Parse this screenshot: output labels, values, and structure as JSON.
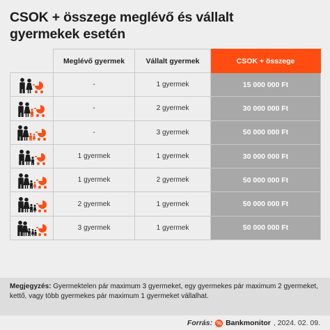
{
  "title": {
    "line1": "CSOK + összege meglévő és vállalt",
    "line2": "gyermekek esetén"
  },
  "table": {
    "headers": [
      "",
      "Meglévő gyermek",
      "Vállalt gyermek",
      "CSOK + összege"
    ],
    "rows": [
      {
        "icon": "couple-with-stroller-icon",
        "existing": "-",
        "committed": "1 gyermek",
        "amount": "15 000 000 Ft"
      },
      {
        "icon": "family-two-kids-icon",
        "existing": "-",
        "committed": "2 gyermek",
        "amount": "30 000 000 Ft"
      },
      {
        "icon": "family-three-kids-icon",
        "existing": "-",
        "committed": "3 gyermek",
        "amount": "50 000 000 Ft"
      },
      {
        "icon": "family-one-child-icon",
        "existing": "1 gyermek",
        "committed": "1 gyermek",
        "amount": "30 000 000 Ft"
      },
      {
        "icon": "family-one-child-two-more-icon",
        "existing": "1 gyermek",
        "committed": "2 gyermek",
        "amount": "50 000 000 Ft"
      },
      {
        "icon": "family-two-children-icon",
        "existing": "2 gyermek",
        "committed": "1 gyermek",
        "amount": "50 000 000 Ft"
      },
      {
        "icon": "family-three-children-icon",
        "existing": "3 gyermek",
        "committed": "1 gyermek",
        "amount": "50 000 000 Ft"
      }
    ]
  },
  "note": {
    "label": "Megjegyzés:",
    "text": "Gyermektelen pár maximum 3 gyermeket, egy gyermekes pár maximum 2 gyermeket, kettő, vagy több gyermekes pár maximum 1 gyermeket vállalhat."
  },
  "footer": {
    "source_label": "Forrás:",
    "brand": "Bankmonitor",
    "date": ", 2024. 02. 09."
  },
  "colors": {
    "accent": "#ff4d12",
    "amount_bg": "#a8a8a8",
    "dark": "#1c1c1c"
  }
}
